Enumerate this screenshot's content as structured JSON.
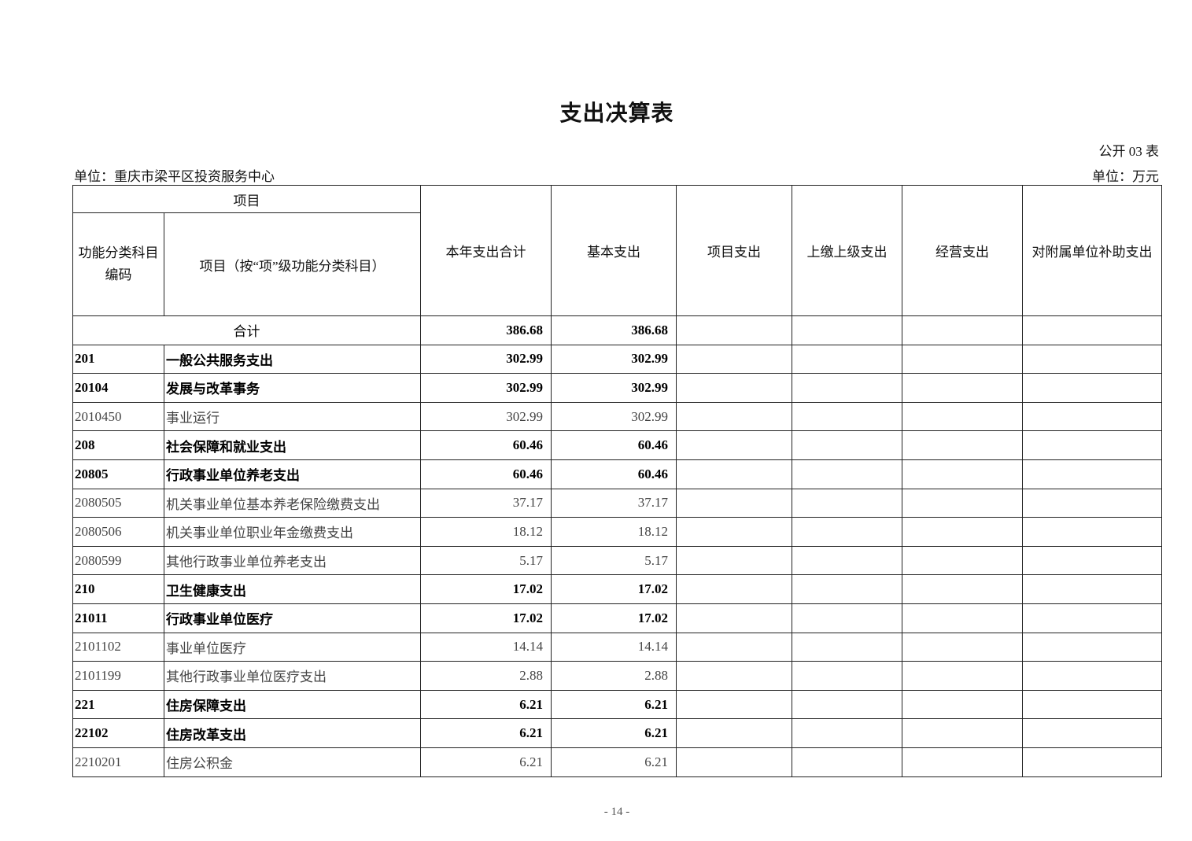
{
  "title": "支出决算表",
  "form_no": "公开 03 表",
  "unit_org": "单位：重庆市梁平区投资服务中心",
  "unit_currency": "单位：万元",
  "headers": {
    "project": "项目",
    "code": "功能分类科目编码",
    "name": "项目（按“项”级功能分类科目）",
    "total": "本年支出合计",
    "basic": "基本支出",
    "project_exp": "项目支出",
    "upper": "上缴上级支出",
    "business": "经营支出",
    "subsidy": "对附属单位补助支出"
  },
  "total_row": {
    "label": "合计",
    "total": "386.68",
    "basic": "386.68"
  },
  "rows": [
    {
      "code": "201",
      "name": "一般公共服务支出",
      "total": "302.99",
      "basic": "302.99",
      "bold": true
    },
    {
      "code": "20104",
      "name": "发展与改革事务",
      "total": "302.99",
      "basic": "302.99",
      "bold": true
    },
    {
      "code": "2010450",
      "name": "事业运行",
      "total": "302.99",
      "basic": "302.99",
      "bold": false
    },
    {
      "code": "208",
      "name": "社会保障和就业支出",
      "total": "60.46",
      "basic": "60.46",
      "bold": true
    },
    {
      "code": "20805",
      "name": "行政事业单位养老支出",
      "total": "60.46",
      "basic": "60.46",
      "bold": true
    },
    {
      "code": "2080505",
      "name": "机关事业单位基本养老保险缴费支出",
      "total": "37.17",
      "basic": "37.17",
      "bold": false
    },
    {
      "code": "2080506",
      "name": "机关事业单位职业年金缴费支出",
      "total": "18.12",
      "basic": "18.12",
      "bold": false
    },
    {
      "code": "2080599",
      "name": "其他行政事业单位养老支出",
      "total": "5.17",
      "basic": "5.17",
      "bold": false
    },
    {
      "code": "210",
      "name": "卫生健康支出",
      "total": "17.02",
      "basic": "17.02",
      "bold": true
    },
    {
      "code": "21011",
      "name": "行政事业单位医疗",
      "total": "17.02",
      "basic": "17.02",
      "bold": true
    },
    {
      "code": "2101102",
      "name": "事业单位医疗",
      "total": "14.14",
      "basic": "14.14",
      "bold": false
    },
    {
      "code": "2101199",
      "name": "其他行政事业单位医疗支出",
      "total": "2.88",
      "basic": "2.88",
      "bold": false
    },
    {
      "code": "221",
      "name": "住房保障支出",
      "total": "6.21",
      "basic": "6.21",
      "bold": true
    },
    {
      "code": "22102",
      "name": "住房改革支出",
      "total": "6.21",
      "basic": "6.21",
      "bold": true
    },
    {
      "code": "2210201",
      "name": "住房公积金",
      "total": "6.21",
      "basic": "6.21",
      "bold": false
    }
  ],
  "page_number": "- 14 -"
}
